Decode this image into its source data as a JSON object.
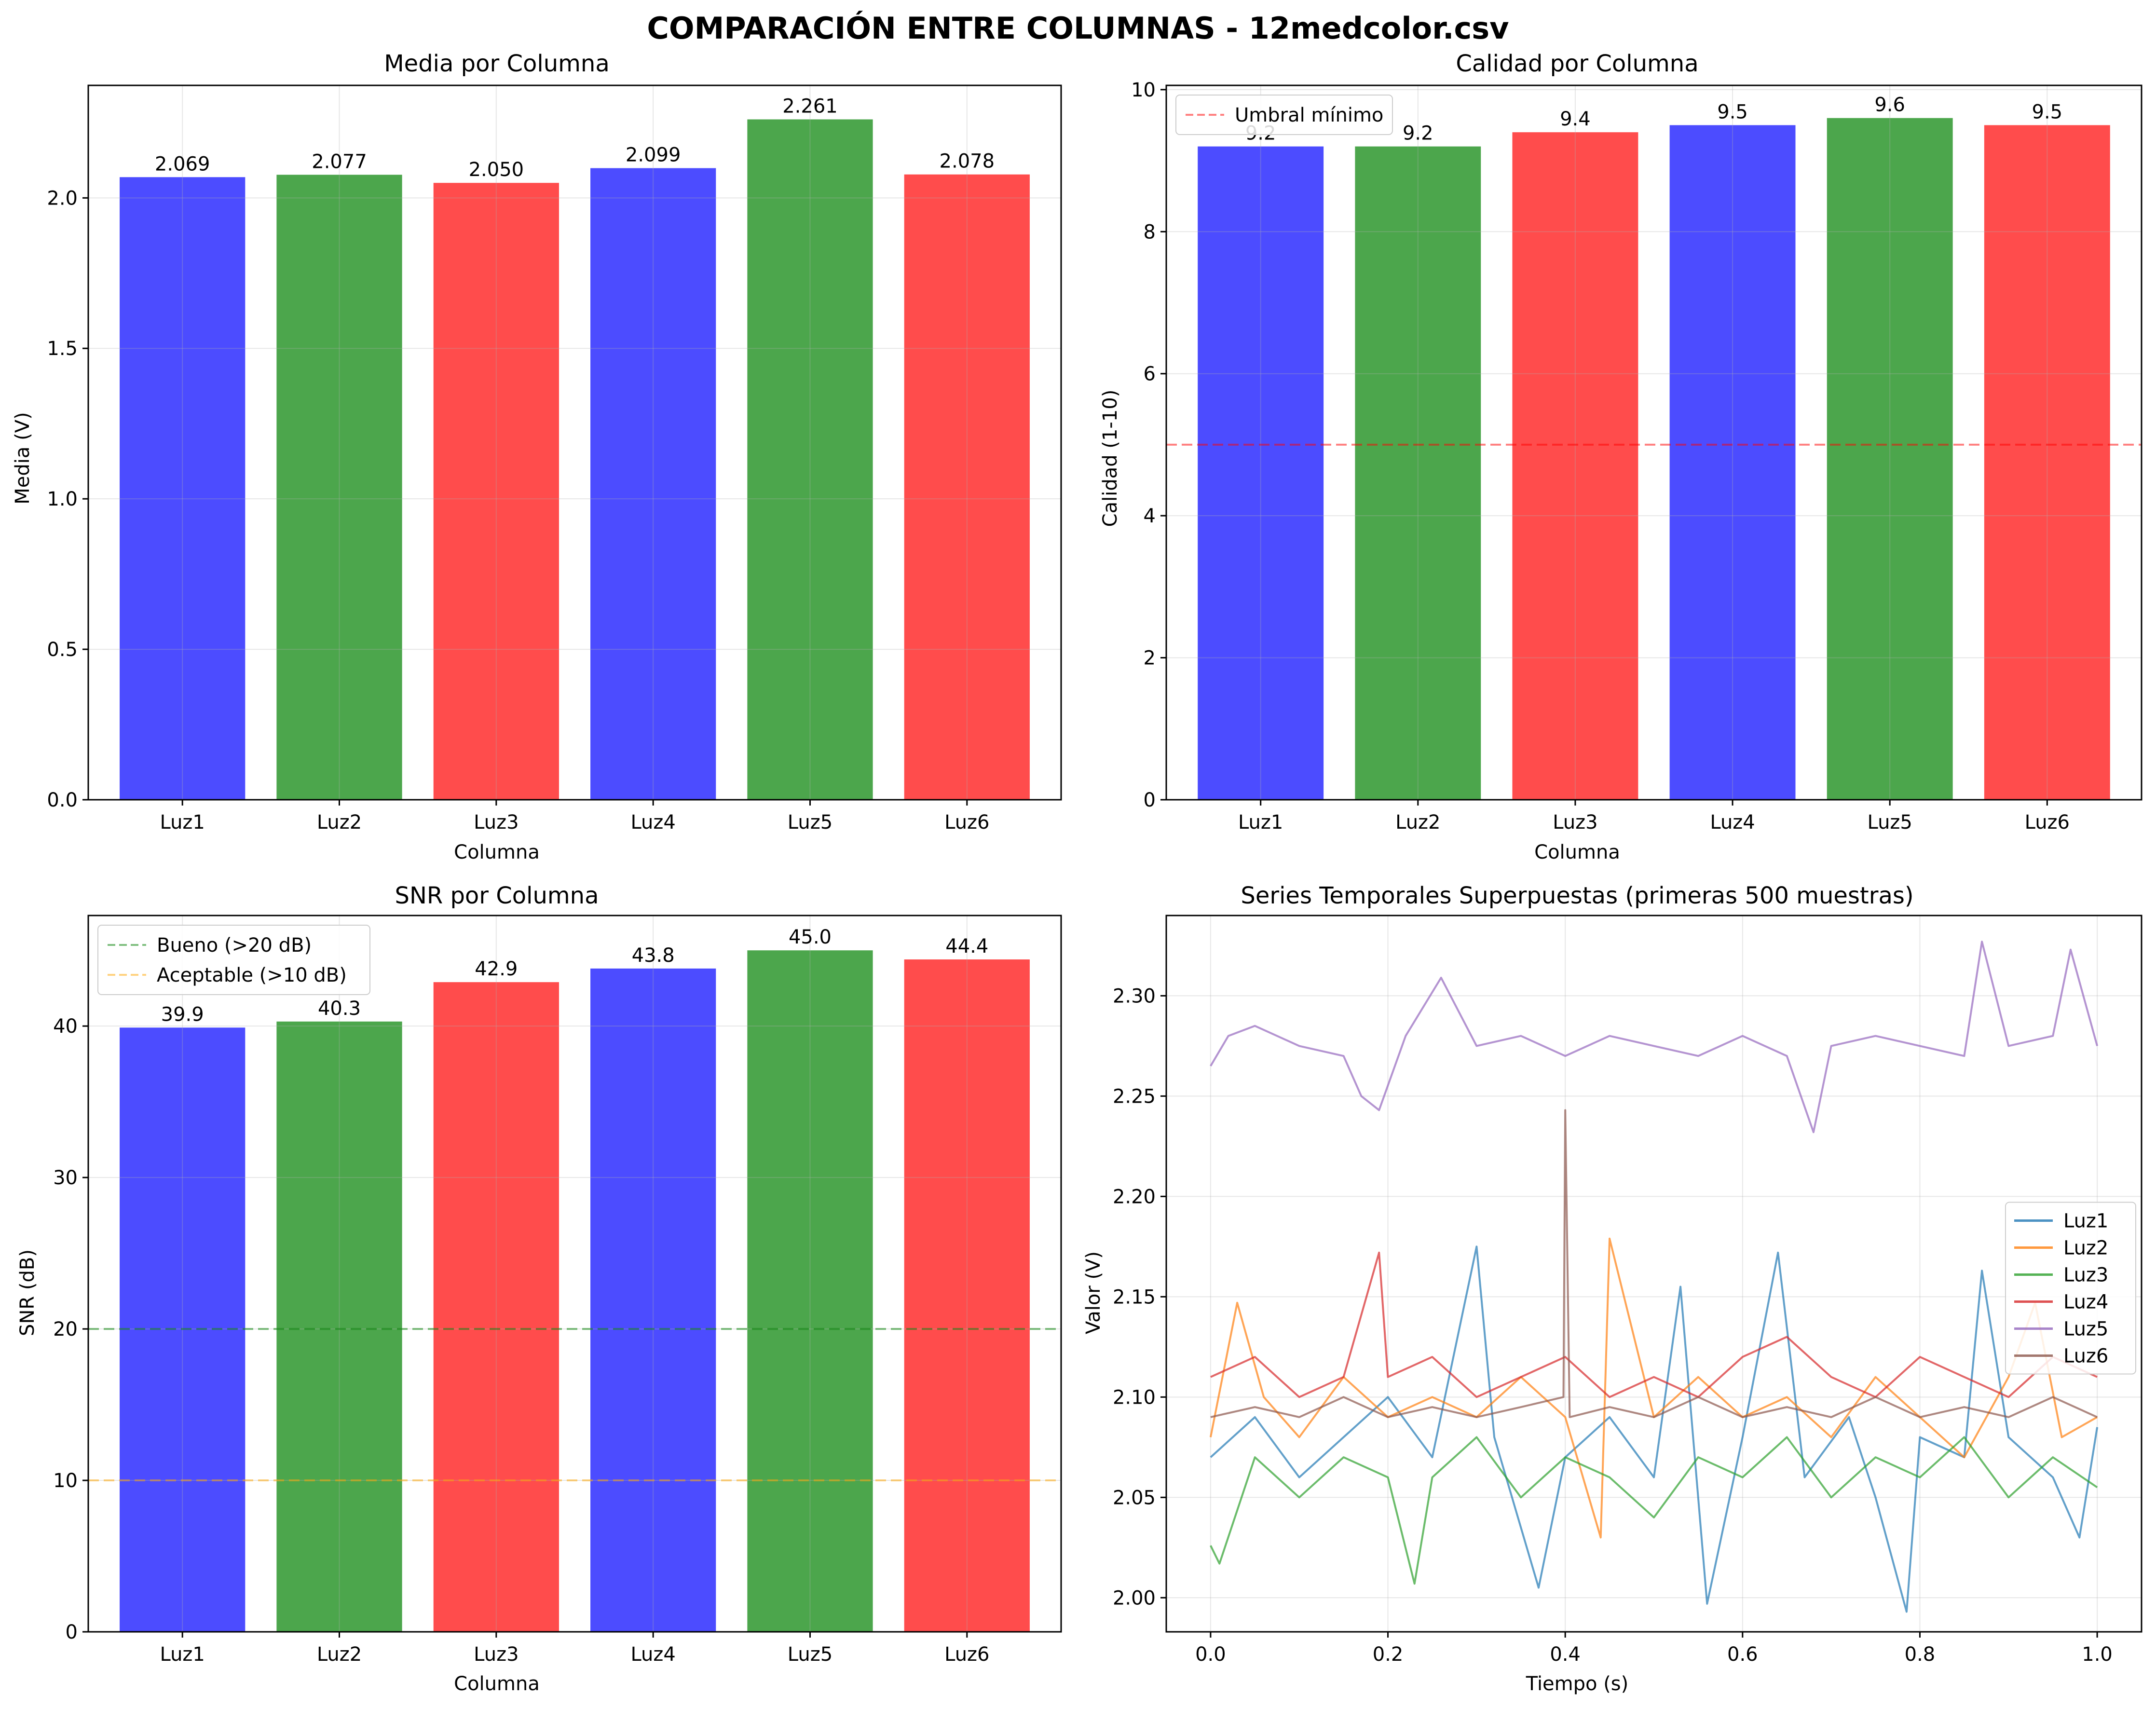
{
  "suptitle": "COMPARACIÓN ENTRE COLUMNAS - 12medcolor.csv",
  "colors": {
    "blue": "#0000ff",
    "green": "#008000",
    "red": "#ff0000",
    "bar_alpha": 0.7
  },
  "chart_data": [
    {
      "type": "bar",
      "title": "Media por Columna",
      "xlabel": "Columna",
      "ylabel": "Media (V)",
      "categories": [
        "Luz1",
        "Luz2",
        "Luz3",
        "Luz4",
        "Luz5",
        "Luz6"
      ],
      "values": [
        2.069,
        2.077,
        2.05,
        2.099,
        2.261,
        2.078
      ],
      "value_labels": [
        "2.069",
        "2.077",
        "2.050",
        "2.099",
        "2.261",
        "2.078"
      ],
      "bar_colors": [
        "#0000ff",
        "#008000",
        "#ff0000",
        "#0000ff",
        "#008000",
        "#ff0000"
      ],
      "ylim": [
        0,
        2.374
      ],
      "yticks": [
        0.0,
        0.5,
        1.0,
        1.5,
        2.0
      ],
      "ytick_labels": [
        "0.0",
        "0.5",
        "1.0",
        "1.5",
        "2.0"
      ],
      "grid": true,
      "hlines": []
    },
    {
      "type": "bar",
      "title": "Calidad por Columna",
      "xlabel": "Columna",
      "ylabel": "Calidad (1-10)",
      "categories": [
        "Luz1",
        "Luz2",
        "Luz3",
        "Luz4",
        "Luz5",
        "Luz6"
      ],
      "values": [
        9.2,
        9.2,
        9.4,
        9.5,
        9.6,
        9.5
      ],
      "value_labels": [
        "9.2",
        "9.2",
        "9.4",
        "9.5",
        "9.6",
        "9.5"
      ],
      "bar_colors": [
        "#0000ff",
        "#008000",
        "#ff0000",
        "#0000ff",
        "#008000",
        "#ff0000"
      ],
      "ylim": [
        0,
        10.06
      ],
      "yticks": [
        0,
        2,
        4,
        6,
        8,
        10
      ],
      "ytick_labels": [
        "0",
        "2",
        "4",
        "6",
        "8",
        "10"
      ],
      "grid": true,
      "hlines": [
        {
          "y": 5,
          "color": "#ff0000",
          "label": "Umbral mínimo"
        }
      ],
      "legend": "upper left"
    },
    {
      "type": "bar",
      "title": "SNR por Columna",
      "xlabel": "Columna",
      "ylabel": "SNR (dB)",
      "categories": [
        "Luz1",
        "Luz2",
        "Luz3",
        "Luz4",
        "Luz5",
        "Luz6"
      ],
      "values": [
        39.9,
        40.3,
        42.9,
        43.8,
        45.0,
        44.4
      ],
      "value_labels": [
        "39.9",
        "40.3",
        "42.9",
        "43.8",
        "45.0",
        "44.4"
      ],
      "bar_colors": [
        "#0000ff",
        "#008000",
        "#ff0000",
        "#0000ff",
        "#008000",
        "#ff0000"
      ],
      "ylim": [
        0,
        47.3
      ],
      "yticks": [
        0,
        10,
        20,
        30,
        40
      ],
      "ytick_labels": [
        "0",
        "10",
        "20",
        "30",
        "40"
      ],
      "grid": true,
      "hlines": [
        {
          "y": 20,
          "color": "#008000",
          "label": "Bueno (>20 dB)"
        },
        {
          "y": 10,
          "color": "#ffa500",
          "label": "Aceptable (>10 dB)"
        }
      ],
      "legend": "upper left"
    },
    {
      "type": "line",
      "title": "Series Temporales Superpuestas (primeras 500 muestras)",
      "xlabel": "Tiempo (s)",
      "ylabel": "Valor (V)",
      "xlim": [
        -0.05,
        1.05
      ],
      "ylim": [
        1.983,
        2.34
      ],
      "xticks": [
        0.0,
        0.2,
        0.4,
        0.6,
        0.8,
        1.0
      ],
      "xtick_labels": [
        "0.0",
        "0.2",
        "0.4",
        "0.6",
        "0.8",
        "1.0"
      ],
      "yticks": [
        2.0,
        2.05,
        2.1,
        2.15,
        2.2,
        2.25,
        2.3
      ],
      "ytick_labels": [
        "2.00",
        "2.05",
        "2.10",
        "2.15",
        "2.20",
        "2.25",
        "2.30"
      ],
      "grid": true,
      "legend": "center right",
      "series": [
        {
          "name": "Luz1",
          "color": "#1f77b4",
          "points": [
            [
              0.0,
              2.07
            ],
            [
              0.05,
              2.09
            ],
            [
              0.1,
              2.06
            ],
            [
              0.15,
              2.08
            ],
            [
              0.2,
              2.1
            ],
            [
              0.25,
              2.07
            ],
            [
              0.3,
              2.175
            ],
            [
              0.32,
              2.08
            ],
            [
              0.37,
              2.005
            ],
            [
              0.4,
              2.07
            ],
            [
              0.45,
              2.09
            ],
            [
              0.5,
              2.06
            ],
            [
              0.53,
              2.155
            ],
            [
              0.56,
              1.997
            ],
            [
              0.6,
              2.08
            ],
            [
              0.64,
              2.172
            ],
            [
              0.67,
              2.06
            ],
            [
              0.72,
              2.09
            ],
            [
              0.75,
              2.05
            ],
            [
              0.785,
              1.993
            ],
            [
              0.8,
              2.08
            ],
            [
              0.85,
              2.07
            ],
            [
              0.87,
              2.163
            ],
            [
              0.9,
              2.08
            ],
            [
              0.95,
              2.06
            ],
            [
              0.98,
              2.03
            ],
            [
              1.0,
              2.085
            ]
          ]
        },
        {
          "name": "Luz2",
          "color": "#ff7f0e",
          "points": [
            [
              0.0,
              2.08
            ],
            [
              0.03,
              2.147
            ],
            [
              0.06,
              2.1
            ],
            [
              0.1,
              2.08
            ],
            [
              0.15,
              2.11
            ],
            [
              0.2,
              2.09
            ],
            [
              0.25,
              2.1
            ],
            [
              0.3,
              2.09
            ],
            [
              0.35,
              2.11
            ],
            [
              0.4,
              2.09
            ],
            [
              0.44,
              2.03
            ],
            [
              0.45,
              2.179
            ],
            [
              0.5,
              2.09
            ],
            [
              0.55,
              2.11
            ],
            [
              0.6,
              2.09
            ],
            [
              0.65,
              2.1
            ],
            [
              0.7,
              2.08
            ],
            [
              0.75,
              2.11
            ],
            [
              0.8,
              2.09
            ],
            [
              0.85,
              2.07
            ],
            [
              0.9,
              2.11
            ],
            [
              0.93,
              2.147
            ],
            [
              0.96,
              2.08
            ],
            [
              1.0,
              2.09
            ]
          ]
        },
        {
          "name": "Luz3",
          "color": "#2ca02c",
          "points": [
            [
              0.0,
              2.026
            ],
            [
              0.01,
              2.017
            ],
            [
              0.05,
              2.07
            ],
            [
              0.1,
              2.05
            ],
            [
              0.15,
              2.07
            ],
            [
              0.2,
              2.06
            ],
            [
              0.23,
              2.007
            ],
            [
              0.25,
              2.06
            ],
            [
              0.3,
              2.08
            ],
            [
              0.35,
              2.05
            ],
            [
              0.4,
              2.07
            ],
            [
              0.45,
              2.06
            ],
            [
              0.5,
              2.04
            ],
            [
              0.55,
              2.07
            ],
            [
              0.6,
              2.06
            ],
            [
              0.65,
              2.08
            ],
            [
              0.7,
              2.05
            ],
            [
              0.75,
              2.07
            ],
            [
              0.8,
              2.06
            ],
            [
              0.85,
              2.08
            ],
            [
              0.9,
              2.05
            ],
            [
              0.95,
              2.07
            ],
            [
              1.0,
              2.055
            ]
          ]
        },
        {
          "name": "Luz4",
          "color": "#d62728",
          "points": [
            [
              0.0,
              2.11
            ],
            [
              0.05,
              2.12
            ],
            [
              0.1,
              2.1
            ],
            [
              0.15,
              2.11
            ],
            [
              0.19,
              2.172
            ],
            [
              0.2,
              2.11
            ],
            [
              0.25,
              2.12
            ],
            [
              0.3,
              2.1
            ],
            [
              0.35,
              2.11
            ],
            [
              0.4,
              2.12
            ],
            [
              0.45,
              2.1
            ],
            [
              0.5,
              2.11
            ],
            [
              0.55,
              2.1
            ],
            [
              0.6,
              2.12
            ],
            [
              0.65,
              2.13
            ],
            [
              0.7,
              2.11
            ],
            [
              0.75,
              2.1
            ],
            [
              0.8,
              2.12
            ],
            [
              0.85,
              2.11
            ],
            [
              0.9,
              2.1
            ],
            [
              0.95,
              2.12
            ],
            [
              1.0,
              2.11
            ]
          ]
        },
        {
          "name": "Luz5",
          "color": "#9467bd",
          "points": [
            [
              0.0,
              2.265
            ],
            [
              0.02,
              2.28
            ],
            [
              0.05,
              2.285
            ],
            [
              0.1,
              2.275
            ],
            [
              0.15,
              2.27
            ],
            [
              0.17,
              2.25
            ],
            [
              0.19,
              2.243
            ],
            [
              0.22,
              2.28
            ],
            [
              0.26,
              2.309
            ],
            [
              0.3,
              2.275
            ],
            [
              0.35,
              2.28
            ],
            [
              0.4,
              2.27
            ],
            [
              0.45,
              2.28
            ],
            [
              0.5,
              2.275
            ],
            [
              0.55,
              2.27
            ],
            [
              0.6,
              2.28
            ],
            [
              0.65,
              2.27
            ],
            [
              0.68,
              2.232
            ],
            [
              0.7,
              2.275
            ],
            [
              0.75,
              2.28
            ],
            [
              0.8,
              2.275
            ],
            [
              0.85,
              2.27
            ],
            [
              0.87,
              2.327
            ],
            [
              0.9,
              2.275
            ],
            [
              0.95,
              2.28
            ],
            [
              0.97,
              2.323
            ],
            [
              1.0,
              2.275
            ]
          ]
        },
        {
          "name": "Luz6",
          "color": "#8c564b",
          "points": [
            [
              0.0,
              2.09
            ],
            [
              0.05,
              2.095
            ],
            [
              0.1,
              2.09
            ],
            [
              0.15,
              2.1
            ],
            [
              0.2,
              2.09
            ],
            [
              0.25,
              2.095
            ],
            [
              0.3,
              2.09
            ],
            [
              0.35,
              2.095
            ],
            [
              0.398,
              2.1
            ],
            [
              0.4,
              2.243
            ],
            [
              0.405,
              2.09
            ],
            [
              0.45,
              2.095
            ],
            [
              0.5,
              2.09
            ],
            [
              0.55,
              2.1
            ],
            [
              0.6,
              2.09
            ],
            [
              0.65,
              2.095
            ],
            [
              0.7,
              2.09
            ],
            [
              0.75,
              2.1
            ],
            [
              0.8,
              2.09
            ],
            [
              0.85,
              2.095
            ],
            [
              0.9,
              2.09
            ],
            [
              0.95,
              2.1
            ],
            [
              1.0,
              2.09
            ]
          ]
        }
      ]
    }
  ]
}
